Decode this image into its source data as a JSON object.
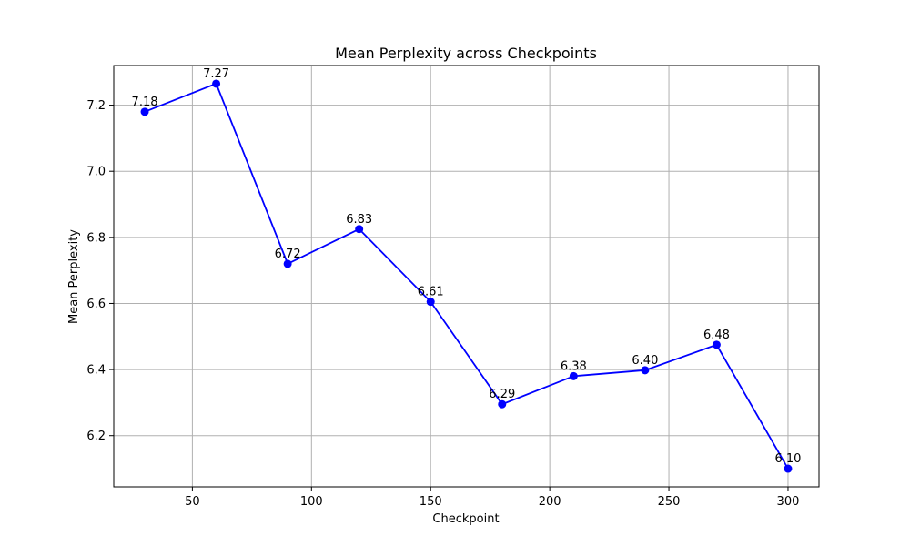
{
  "chart_data": {
    "type": "line",
    "title": "Mean Perplexity across Checkpoints",
    "xlabel": "Checkpoint",
    "ylabel": "Mean Perplexity",
    "x": [
      30,
      60,
      90,
      120,
      150,
      180,
      210,
      240,
      270,
      300
    ],
    "series": [
      {
        "values": [
          7.18,
          7.265,
          6.72,
          6.825,
          6.605,
          6.295,
          6.38,
          6.398,
          6.475,
          6.1
        ],
        "labels": [
          "7.18",
          "7.27",
          "6.72",
          "6.83",
          "6.61",
          "6.29",
          "6.38",
          "6.40",
          "6.48",
          "6.10"
        ],
        "color": "#0000ff",
        "marker": "circle"
      }
    ],
    "xlim": [
      17,
      313
    ],
    "ylim": [
      6.045,
      7.32
    ],
    "xticks": [
      50,
      100,
      150,
      200,
      250,
      300
    ],
    "xtick_labels": [
      "50",
      "100",
      "150",
      "200",
      "250",
      "300"
    ],
    "yticks": [
      6.2,
      6.4,
      6.6,
      6.8,
      7.0,
      7.2
    ],
    "ytick_labels": [
      "6.2",
      "6.4",
      "6.6",
      "6.8",
      "7.0",
      "7.2"
    ],
    "grid": true
  }
}
